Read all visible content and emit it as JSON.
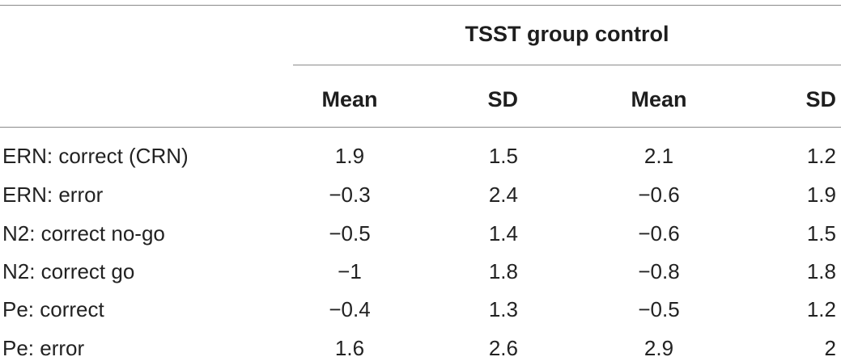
{
  "table": {
    "group_title": "TSST group control",
    "columns": [
      "Mean",
      "SD",
      "Mean",
      "SD"
    ],
    "rows": [
      {
        "label": "ERN: correct (CRN)",
        "values": [
          "1.9",
          "1.5",
          "2.1",
          "1.2"
        ]
      },
      {
        "label": "ERN: error",
        "values": [
          "−0.3",
          "2.4",
          "−0.6",
          "1.9"
        ]
      },
      {
        "label": "N2: correct no-go",
        "values": [
          "−0.5",
          "1.4",
          "−0.6",
          "1.5"
        ]
      },
      {
        "label": "N2: correct go",
        "values": [
          "−1",
          "1.8",
          "−0.8",
          "1.8"
        ]
      },
      {
        "label": "Pe: correct",
        "values": [
          "−0.4",
          "1.3",
          "−0.5",
          "1.2"
        ]
      },
      {
        "label": "Pe: error",
        "values": [
          "1.6",
          "2.6",
          "2.9",
          "2"
        ]
      }
    ]
  }
}
